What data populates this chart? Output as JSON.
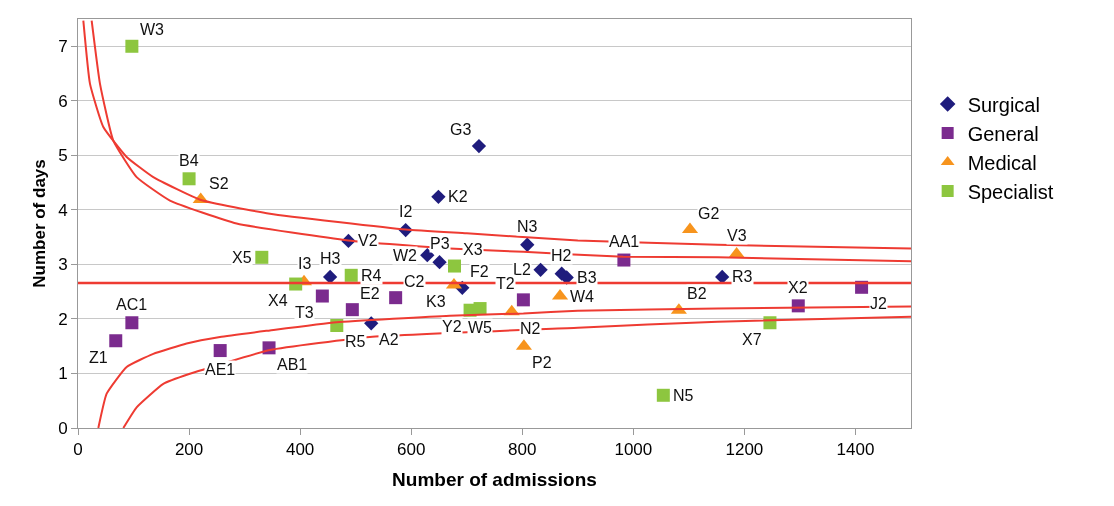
{
  "chart_data": {
    "type": "scatter",
    "xlabel": "Number of admissions",
    "ylabel": "Number of days",
    "xlim": [
      0,
      1500
    ],
    "xticks": [
      0,
      200,
      400,
      600,
      800,
      1000,
      1200,
      1400
    ],
    "ylim": [
      0,
      7.5
    ],
    "yticks": [
      0,
      1,
      2,
      3,
      4,
      5,
      6,
      7
    ],
    "grid": "y",
    "legend": "right",
    "series": [
      {
        "name": "Surgical",
        "color": "#1f1c7d",
        "marker": "diamond",
        "x": [
          722,
          649,
          590,
          487,
          629,
          651,
          454,
          833,
          871,
          880,
          809,
          692,
          528,
          1160
        ],
        "values": [
          5.17,
          4.24,
          3.63,
          3.43,
          3.17,
          3.04,
          2.77,
          2.9,
          2.83,
          2.76,
          3.36,
          2.57,
          1.92,
          2.77
        ],
        "value_labels": [
          "G3",
          "K2",
          "I2",
          "V2",
          "W2",
          "P3",
          "H3",
          "L2",
          "H2",
          "B3",
          "N3",
          "F2",
          "A2",
          "R3"
        ]
      },
      {
        "name": "General",
        "color": "#7b2b8e",
        "marker": "square",
        "x": [
          97,
          68,
          256,
          344,
          440,
          494,
          572,
          802,
          983,
          1297,
          1411
        ],
        "values": [
          1.93,
          1.6,
          1.42,
          1.47,
          2.42,
          2.17,
          2.39,
          2.35,
          3.08,
          2.24,
          2.58
        ],
        "value_labels": [
          "AC1",
          "Z1",
          "AE1",
          "AB1",
          "T3",
          "E2",
          "C2",
          "T2",
          "AA1",
          "X2",
          "J2"
        ]
      },
      {
        "name": "Medical",
        "color": "#f7941d",
        "marker": "triangle",
        "x": [
          221,
          407,
          677,
          781,
          803,
          868,
          1102,
          1082,
          1186
        ],
        "values": [
          4.19,
          2.68,
          2.62,
          2.13,
          1.5,
          2.42,
          3.64,
          2.16,
          3.19
        ],
        "value_labels": [
          "S2",
          "I3",
          "K3",
          "N2",
          "P2",
          "W4",
          "G2",
          "B2",
          "V3"
        ]
      },
      {
        "name": "Specialist",
        "color": "#8dc63f",
        "marker": "square",
        "x": [
          97,
          200,
          331,
          392,
          492,
          678,
          706,
          724,
          1054,
          1246,
          466
        ],
        "values": [
          7,
          4.57,
          3.13,
          2.64,
          2.8,
          2.97,
          2.16,
          2.19,
          0.6,
          1.93,
          1.88
        ],
        "value_labels": [
          "W3",
          "B4",
          "X5",
          "X4",
          "R4",
          "X3",
          "Y2",
          "W5",
          "N5",
          "X7",
          "R5"
        ]
      },
      {
        "type": "line",
        "color": "#ee3b32",
        "marker": "none",
        "x": [
          9.6,
          21.6,
          45.6,
          87.6,
          135.6,
          221.4,
          345.6,
          590,
          700,
          900,
          1152,
          1500
        ],
        "values": [
          7.47,
          6.31,
          5.52,
          4.97,
          4.6,
          4.18,
          3.93,
          3.64,
          3.57,
          3.44,
          3.36,
          3.29
        ]
      },
      {
        "type": "line",
        "color": "#ee3b32",
        "marker": "none",
        "x": [
          24.6,
          39.6,
          63.6,
          105.6,
          165.6,
          285.6,
          486.6,
          669.6,
          802,
          982,
          1152,
          1500
        ],
        "values": [
          7.47,
          6.31,
          5.27,
          4.6,
          4.17,
          3.75,
          3.44,
          3.29,
          3.23,
          3.14,
          3.13,
          3.06
        ]
      },
      {
        "type": "line",
        "color": "#ee3b32",
        "marker": "none",
        "x": [
          36.6,
          51.6,
          87.6,
          135.6,
          195.6,
          255.6,
          345.6,
          465.6,
          669.6,
          802,
          900,
          1152,
          1500
        ],
        "values": [
          0,
          0.63,
          1.12,
          1.36,
          1.55,
          1.67,
          1.79,
          1.94,
          2.06,
          2.1,
          2.15,
          2.19,
          2.23
        ]
      },
      {
        "type": "line",
        "color": "#ee3b32",
        "marker": "none",
        "x": [
          81.6,
          105.6,
          153.6,
          200,
          345.6,
          525.6,
          900,
          1152,
          1500
        ],
        "values": [
          0,
          0.38,
          0.81,
          0.99,
          1.43,
          1.67,
          1.84,
          1.95,
          2.04
        ]
      }
    ],
    "ref_lines": [
      {
        "axis": "y",
        "value": 2.66,
        "color": "#ee3b32"
      }
    ]
  }
}
